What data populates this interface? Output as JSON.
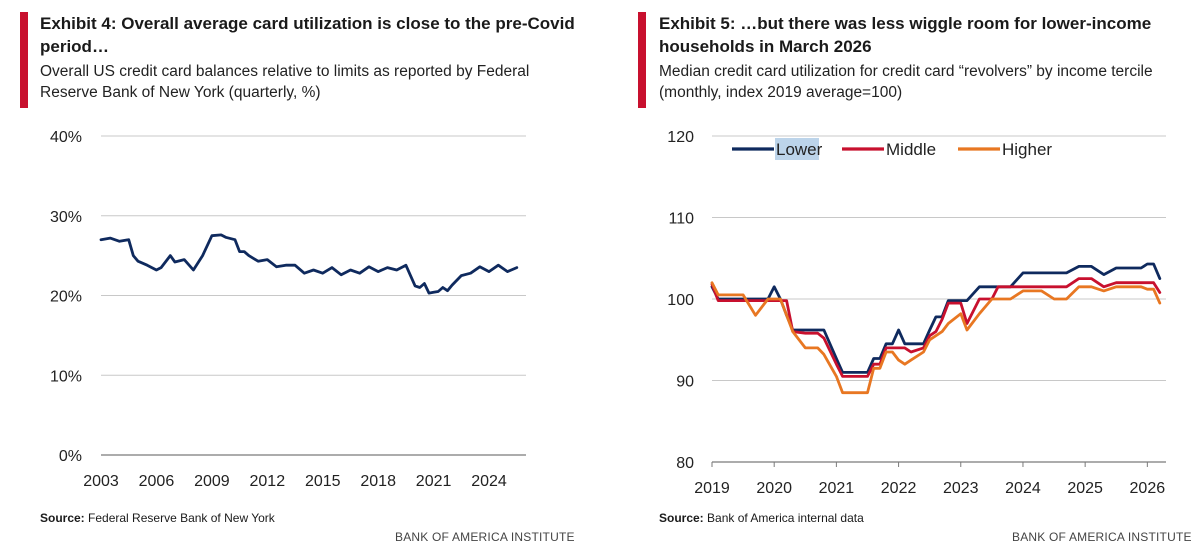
{
  "colors": {
    "accent": "#c8102e",
    "grid": "#c8c8c8",
    "axis": "#7a7a7a"
  },
  "left": {
    "title": "Exhibit 4: Overall average card utilization is close to the pre-Covid period…",
    "subtitle": "Overall US credit card balances relative to limits as reported by Federal Reserve Bank of New York (quarterly, %)",
    "source_label": "Source:",
    "source_text": "Federal Reserve Bank of New York",
    "footer": "BANK OF AMERICA INSTITUTE"
  },
  "right": {
    "title": "Exhibit 5: …but there was less wiggle room for lower-income households in March 2026",
    "subtitle": "Median credit card utilization for credit card “revolvers” by income tercile (monthly, index 2019 average=100)",
    "source_label": "Source:",
    "source_text": "Bank of America internal data",
    "footer": "BANK OF AMERICA INSTITUTE"
  },
  "chart_data": [
    {
      "type": "line",
      "title": "Exhibit 4: Overall average card utilization is close to the pre-Covid period…",
      "xlabel": "",
      "ylabel": "",
      "xlim": [
        2003,
        2026
      ],
      "ylim": [
        0,
        40
      ],
      "x_ticks": [
        2003,
        2006,
        2009,
        2012,
        2015,
        2018,
        2021,
        2024
      ],
      "x_tick_labels": [
        "2003",
        "2006",
        "2009",
        "2012",
        "2015",
        "2018",
        "2021",
        "2024"
      ],
      "y_ticks": [
        0,
        10,
        20,
        30,
        40
      ],
      "y_tick_labels": [
        "0%",
        "10%",
        "20%",
        "30%",
        "40%"
      ],
      "grid": true,
      "legend": "none",
      "series": [
        {
          "color": "#0f2a5e",
          "x": [
            2003.0,
            2003.5,
            2004.0,
            2004.5,
            2004.75,
            2005.0,
            2005.5,
            2006.0,
            2006.25,
            2006.75,
            2007.0,
            2007.5,
            2008.0,
            2008.5,
            2009.0,
            2009.5,
            2009.75,
            2010.25,
            2010.5,
            2010.75,
            2011.0,
            2011.5,
            2012.0,
            2012.5,
            2013.0,
            2013.5,
            2014.0,
            2014.5,
            2015.0,
            2015.5,
            2016.0,
            2016.5,
            2017.0,
            2017.5,
            2018.0,
            2018.5,
            2019.0,
            2019.5,
            2019.75,
            2020.0,
            2020.25,
            2020.5,
            2020.75,
            2021.0,
            2021.25,
            2021.5,
            2021.75,
            2022.0,
            2022.5,
            2023.0,
            2023.5,
            2024.0,
            2024.5,
            2025.0,
            2025.5
          ],
          "y": [
            27.0,
            27.2,
            26.8,
            27.0,
            25.0,
            24.3,
            23.8,
            23.2,
            23.5,
            25.0,
            24.2,
            24.5,
            23.2,
            25.0,
            27.5,
            27.6,
            27.3,
            27.0,
            25.5,
            25.5,
            25.0,
            24.3,
            24.5,
            23.6,
            23.8,
            23.8,
            22.8,
            23.2,
            22.8,
            23.5,
            22.6,
            23.2,
            22.8,
            23.6,
            23.0,
            23.5,
            23.2,
            23.8,
            22.5,
            21.2,
            21.0,
            21.5,
            20.3,
            20.4,
            20.5,
            21.0,
            20.6,
            21.3,
            22.5,
            22.8,
            23.6,
            23.0,
            23.8,
            23.0,
            23.5
          ]
        }
      ]
    },
    {
      "type": "line",
      "title": "Exhibit 5: …but there was less wiggle room for lower-income households in March 2026",
      "xlabel": "",
      "ylabel": "",
      "xlim": [
        2019,
        2026.3
      ],
      "ylim": [
        80,
        120
      ],
      "x_ticks": [
        2019,
        2020,
        2021,
        2022,
        2023,
        2024,
        2025,
        2026
      ],
      "x_tick_labels": [
        "2019",
        "2020",
        "2021",
        "2022",
        "2023",
        "2024",
        "2025",
        "2026"
      ],
      "y_ticks": [
        80,
        90,
        100,
        110,
        120
      ],
      "y_tick_labels": [
        "80",
        "90",
        "100",
        "110",
        "120"
      ],
      "grid": true,
      "legend": "top-left",
      "series": [
        {
          "name": "Lower",
          "color": "#0f2a5e",
          "x": [
            2019.0,
            2019.1,
            2019.3,
            2019.5,
            2019.7,
            2019.9,
            2020.0,
            2020.1,
            2020.2,
            2020.3,
            2020.5,
            2020.7,
            2020.8,
            2021.0,
            2021.1,
            2021.2,
            2021.4,
            2021.5,
            2021.6,
            2021.7,
            2021.8,
            2021.9,
            2022.0,
            2022.1,
            2022.2,
            2022.4,
            2022.5,
            2022.6,
            2022.7,
            2022.8,
            2023.0,
            2023.1,
            2023.3,
            2023.5,
            2023.6,
            2023.8,
            2024.0,
            2024.1,
            2024.3,
            2024.5,
            2024.7,
            2024.9,
            2025.0,
            2025.1,
            2025.3,
            2025.5,
            2025.7,
            2025.9,
            2026.0,
            2026.1,
            2026.2
          ],
          "y": [
            101.5,
            100.0,
            100.0,
            100.0,
            100.0,
            100.0,
            101.5,
            100.0,
            98.0,
            96.2,
            96.2,
            96.2,
            96.2,
            92.7,
            91.0,
            91.0,
            91.0,
            91.0,
            92.7,
            92.7,
            94.5,
            94.5,
            96.2,
            94.5,
            94.5,
            94.5,
            96.2,
            97.8,
            97.8,
            99.8,
            99.8,
            99.8,
            101.5,
            101.5,
            101.5,
            101.5,
            103.2,
            103.2,
            103.2,
            103.2,
            103.2,
            104.0,
            104.0,
            104.0,
            103.0,
            103.8,
            103.8,
            103.8,
            104.3,
            104.3,
            102.5
          ]
        },
        {
          "name": "Middle",
          "color": "#c8102e",
          "x": [
            2019.0,
            2019.1,
            2019.3,
            2019.5,
            2019.7,
            2019.9,
            2020.0,
            2020.1,
            2020.2,
            2020.3,
            2020.5,
            2020.7,
            2020.8,
            2021.0,
            2021.1,
            2021.2,
            2021.4,
            2021.5,
            2021.6,
            2021.7,
            2021.8,
            2021.9,
            2022.0,
            2022.1,
            2022.2,
            2022.4,
            2022.5,
            2022.6,
            2022.7,
            2022.8,
            2023.0,
            2023.1,
            2023.3,
            2023.5,
            2023.6,
            2023.8,
            2024.0,
            2024.1,
            2024.3,
            2024.5,
            2024.7,
            2024.9,
            2025.0,
            2025.1,
            2025.3,
            2025.5,
            2025.7,
            2025.9,
            2026.0,
            2026.1,
            2026.2
          ],
          "y": [
            101.8,
            99.8,
            99.8,
            99.8,
            99.8,
            99.8,
            99.8,
            99.8,
            99.8,
            96.0,
            95.8,
            95.8,
            95.2,
            92.0,
            90.5,
            90.5,
            90.5,
            90.5,
            92.0,
            92.0,
            94.0,
            94.0,
            94.0,
            94.0,
            93.5,
            94.0,
            95.5,
            96.0,
            97.5,
            99.5,
            99.5,
            97.0,
            100.0,
            100.0,
            101.5,
            101.5,
            101.5,
            101.5,
            101.5,
            101.5,
            101.5,
            102.5,
            102.5,
            102.5,
            101.5,
            102.0,
            102.0,
            102.0,
            102.0,
            102.0,
            100.8
          ]
        },
        {
          "name": "Higher",
          "color": "#e87722",
          "x": [
            2019.0,
            2019.1,
            2019.3,
            2019.5,
            2019.7,
            2019.9,
            2020.0,
            2020.1,
            2020.2,
            2020.3,
            2020.5,
            2020.7,
            2020.8,
            2021.0,
            2021.1,
            2021.2,
            2021.4,
            2021.5,
            2021.6,
            2021.7,
            2021.8,
            2021.9,
            2022.0,
            2022.1,
            2022.2,
            2022.4,
            2022.5,
            2022.6,
            2022.7,
            2022.8,
            2023.0,
            2023.1,
            2023.3,
            2023.5,
            2023.6,
            2023.8,
            2024.0,
            2024.1,
            2024.3,
            2024.5,
            2024.7,
            2024.9,
            2025.0,
            2025.1,
            2025.3,
            2025.5,
            2025.7,
            2025.9,
            2026.0,
            2026.1,
            2026.2
          ],
          "y": [
            102.0,
            100.5,
            100.5,
            100.5,
            98.0,
            100.0,
            100.0,
            100.0,
            98.0,
            96.0,
            94.0,
            94.0,
            93.2,
            90.5,
            88.5,
            88.5,
            88.5,
            88.5,
            91.5,
            91.5,
            93.5,
            93.5,
            92.5,
            92.0,
            92.5,
            93.5,
            95.0,
            95.5,
            96.0,
            97.0,
            98.2,
            96.2,
            98.2,
            100.0,
            100.0,
            100.0,
            101.0,
            101.0,
            101.0,
            100.0,
            100.0,
            101.5,
            101.5,
            101.5,
            101.0,
            101.5,
            101.5,
            101.5,
            101.2,
            101.2,
            99.5
          ]
        }
      ]
    }
  ]
}
